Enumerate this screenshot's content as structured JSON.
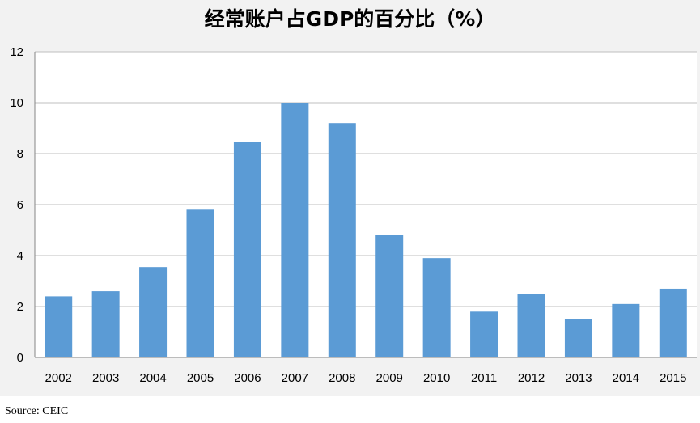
{
  "chart_data": {
    "type": "bar",
    "title": "经常账户占GDP的百分比（%）",
    "categories": [
      "2002",
      "2003",
      "2004",
      "2005",
      "2006",
      "2007",
      "2008",
      "2009",
      "2010",
      "2011",
      "2012",
      "2013",
      "2014",
      "2015"
    ],
    "values": [
      2.4,
      2.6,
      3.55,
      5.8,
      8.45,
      10.0,
      9.2,
      4.8,
      3.9,
      1.8,
      2.5,
      1.5,
      2.1,
      2.7
    ],
    "xlabel": "",
    "ylabel": "",
    "ylim": [
      0,
      12
    ],
    "yticks": [
      "0",
      "2",
      "4",
      "6",
      "8",
      "10",
      "12"
    ],
    "grid": true,
    "legend": "none",
    "bar_color": "#5b9bd5",
    "grid_color": "#bfbfbf",
    "plot_background": "#ffffff",
    "frame_background": "#f2f2f2"
  },
  "source": "Source: CEIC"
}
